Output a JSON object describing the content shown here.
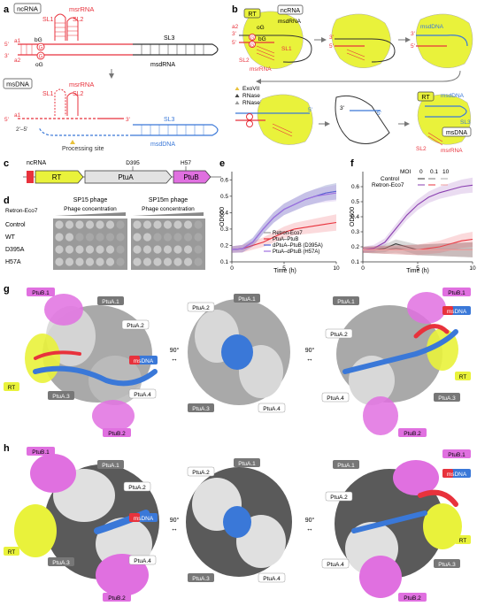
{
  "panels": {
    "a": {
      "letter": "a",
      "tags": {
        "ncrna": "ncRNA",
        "msdna": "msDNA"
      },
      "msrrna": "msrRNA",
      "msdrna": "msdRNA",
      "msddna": "msdDNA",
      "sl1": "SL1",
      "sl2": "SL2",
      "sl3": "SL3",
      "a1": "a1",
      "a2": "a2",
      "bg": "bG",
      "og": "oG",
      "g": "G",
      "five": "5'",
      "three": "3'",
      "link": "2'–5'",
      "processing": "Processing site"
    },
    "b": {
      "letter": "b",
      "rt": "RT",
      "ncrna": "ncRNA",
      "msdrna": "msdRNA",
      "msddna": "msdDNA",
      "msdna": "msDNA",
      "msrrna": "msrRNA",
      "sl1": "SL1",
      "sl2": "SL2",
      "sl3": "SL3",
      "a2": "a2",
      "og": "oG",
      "bg": "bG",
      "g": "G",
      "five": "5'",
      "three": "3'",
      "legend": [
        "ExoVII",
        "RNase",
        "RNaseH"
      ]
    },
    "c": {
      "letter": "c",
      "ncrna": "ncRNA",
      "rt": "RT",
      "ptua": "PtuA",
      "ptub": "PtuB",
      "d395": "D395",
      "h57": "H57"
    },
    "d": {
      "letter": "d",
      "title_left": "SP15 phage",
      "title_right": "SP15m phage",
      "sub": "Phage concentration",
      "rowhead": "Retron-Eco7",
      "rows": [
        "Control",
        "WT",
        "D395A",
        "H57A"
      ]
    },
    "e": {
      "letter": "e",
      "ylabel": "OD600",
      "xlabel": "Time (h)",
      "legend": [
        "Retron-Eco7",
        "PtuA–PtuB",
        "dPtuA–PtuB (D395A)",
        "PtuA–dPtuB (H57A)"
      ],
      "xticks": [
        "0",
        "5",
        "10"
      ],
      "yticks": [
        "0.1",
        "0.2",
        "0.3",
        "0.4",
        "0.5",
        "0.6"
      ]
    },
    "f": {
      "letter": "f",
      "ylabel": "OD600",
      "xlabel": "Time (h)",
      "moi_label": "MOI",
      "moi": [
        "0",
        "0.1",
        "10"
      ],
      "legend": [
        "Control",
        "Retron-Eco7"
      ],
      "xticks": [
        "0",
        "5",
        "10"
      ],
      "yticks": [
        "0.1",
        "0.2",
        "0.3",
        "0.4",
        "0.5",
        "0.6"
      ]
    },
    "g": {
      "letter": "g",
      "rot": "90°",
      "left": {
        "ptub1": "PtuB.1",
        "ptua1": "PtuA.1",
        "ptua2": "PtuA.2",
        "msdna": "msDNA",
        "rt": "RT",
        "ptua3": "PtuA.3",
        "ptua4": "PtuA.4",
        "ptub2": "PtuB.2"
      },
      "mid": {
        "ptua1": "PtuA.1",
        "ptua2": "PtuA.2",
        "ptua3": "PtuA.3",
        "ptua4": "PtuA.4"
      },
      "right": {
        "ptua1": "PtuA.1",
        "ptub1": "PtuB.1",
        "msdna": "msDNA",
        "ptua2": "PtuA.2",
        "rt": "RT",
        "ptua4": "PtuA.4",
        "ptua3": "PtuA.3",
        "ptub2": "PtuB.2"
      }
    },
    "h": {
      "letter": "h",
      "rot": "90°",
      "left": {
        "ptub1": "PtuB.1",
        "ptua1": "PtuA.1",
        "ptua2": "PtuA.2",
        "msdna": "msDNA",
        "rt": "RT",
        "ptua3": "PtuA.3",
        "ptua4": "PtuA.4",
        "ptub2": "PtuB.2"
      },
      "mid": {
        "ptua1": "PtuA.1",
        "ptua2": "PtuA.2",
        "ptua3": "PtuA.3",
        "ptua4": "PtuA.4"
      },
      "right": {
        "ptua1": "PtuA.1",
        "ptub1": "PtuB.1",
        "msdna": "msDNA",
        "ptua2": "PtuA.2",
        "rt": "RT",
        "ptua4": "PtuA.4",
        "ptua3": "PtuA.3",
        "ptub2": "PtuB.2"
      }
    }
  },
  "colors": {
    "rna": "#e8323c",
    "dna": "#3a78d8",
    "rt": "#e9f23b",
    "ptub": "#e070e0",
    "ptua_dark": "#595959",
    "ptua_light": "#e2e2e2",
    "control": "#333333"
  },
  "chart_data": [
    {
      "id": "e",
      "type": "line",
      "xlabel": "Time (h)",
      "ylabel": "OD600",
      "xlim": [
        0,
        10
      ],
      "ylim": [
        0.1,
        0.65
      ],
      "x": [
        0,
        1,
        2,
        3,
        4,
        5,
        6,
        7,
        8,
        9,
        10
      ],
      "series": [
        {
          "name": "Retron-Eco7",
          "color": "#999999",
          "values": [
            0.175,
            0.18,
            0.22,
            0.3,
            0.37,
            0.42,
            0.45,
            0.48,
            0.5,
            0.52,
            0.53
          ]
        },
        {
          "name": "PtuA–PtuB",
          "color": "#e8323c",
          "values": [
            0.175,
            0.18,
            0.2,
            0.22,
            0.25,
            0.28,
            0.3,
            0.31,
            0.32,
            0.33,
            0.34
          ]
        },
        {
          "name": "dPtuA–PtuB (D395A)",
          "color": "#4a5ed6",
          "values": [
            0.175,
            0.18,
            0.22,
            0.3,
            0.37,
            0.42,
            0.45,
            0.48,
            0.5,
            0.52,
            0.53
          ]
        },
        {
          "name": "PtuA–dPtuB (H57A)",
          "color": "#a070e0",
          "values": [
            0.175,
            0.18,
            0.22,
            0.3,
            0.37,
            0.42,
            0.45,
            0.48,
            0.5,
            0.51,
            0.52
          ]
        }
      ]
    },
    {
      "id": "f",
      "type": "line",
      "xlabel": "Time (h)",
      "ylabel": "OD600",
      "xlim": [
        0,
        10
      ],
      "ylim": [
        0.1,
        0.7
      ],
      "x": [
        0,
        1,
        2,
        3,
        4,
        5,
        6,
        7,
        8,
        9,
        10
      ],
      "series": [
        {
          "name": "Control",
          "moi": "0",
          "color": "#333333",
          "values": [
            0.18,
            0.18,
            0.19,
            0.22,
            0.2,
            0.18,
            0.18,
            0.18,
            0.18,
            0.18,
            0.18
          ]
        },
        {
          "name": "Control",
          "moi": "0.1",
          "color": "#777777",
          "values": [
            0.18,
            0.18,
            0.18,
            0.19,
            0.18,
            0.18,
            0.18,
            0.18,
            0.18,
            0.18,
            0.18
          ]
        },
        {
          "name": "Control",
          "moi": "10",
          "color": "#aaaaaa",
          "values": [
            0.18,
            0.18,
            0.18,
            0.18,
            0.18,
            0.18,
            0.18,
            0.18,
            0.18,
            0.18,
            0.18
          ]
        },
        {
          "name": "Retron-Eco7",
          "moi": "0",
          "color": "#8a3fb0",
          "values": [
            0.18,
            0.19,
            0.23,
            0.32,
            0.41,
            0.48,
            0.53,
            0.56,
            0.58,
            0.6,
            0.61
          ]
        },
        {
          "name": "Retron-Eco7",
          "moi": "0.1",
          "color": "#e8323c",
          "values": [
            0.18,
            0.18,
            0.18,
            0.18,
            0.18,
            0.18,
            0.19,
            0.2,
            0.22,
            0.24,
            0.25
          ]
        },
        {
          "name": "Retron-Eco7",
          "moi": "10",
          "color": "#f0a0a0",
          "values": [
            0.18,
            0.18,
            0.18,
            0.18,
            0.18,
            0.18,
            0.18,
            0.18,
            0.18,
            0.18,
            0.18
          ]
        }
      ]
    }
  ]
}
